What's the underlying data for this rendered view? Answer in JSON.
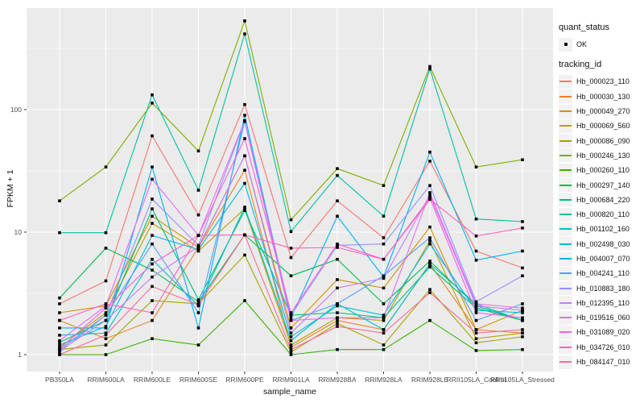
{
  "figure": {
    "x_axis_title": "sample_name",
    "y_axis_title": "FPKM + 1",
    "legend": {
      "quant_status_title": "quant_status",
      "quant_status_items": [
        "OK"
      ],
      "tracking_id_title": "tracking_id"
    }
  },
  "colors": {
    "panel_bg": "#EBEBEB",
    "grid": "#FFFFFF",
    "legend_key_bg": "#F2F2F2",
    "tick_label": "#4D4D4D",
    "tick_mark": "#333333",
    "marker": "#000000"
  },
  "chart_data": {
    "type": "line",
    "title": "",
    "xlabel": "sample_name",
    "ylabel": "FPKM + 1",
    "y_scale": "log10",
    "yticks": [
      1,
      10,
      100
    ],
    "ytick_labels": [
      "1",
      "10",
      "100"
    ],
    "y_minor_ticks": [
      3.162,
      31.62,
      316.2
    ],
    "ylim": [
      0.73,
      675
    ],
    "grid": "on",
    "legend_position": "right",
    "point_shape": "small black square (quant_status = OK)",
    "categories": [
      "PB350LA",
      "RRIM600LA",
      "RRIM600LE",
      "RRIM600SE",
      "RRIM600PE",
      "RRIM901LA",
      "RRIM928BA",
      "RRIM928LA",
      "RRIM928LE",
      "RRII105LA_Control",
      "RRII105LA_Stressed"
    ],
    "series": [
      {
        "name": "Hb_000023_110",
        "color": "#F8766D",
        "values": [
          2.6,
          4.0,
          61,
          13.8,
          110,
          6.2,
          18,
          9.0,
          38,
          7.0,
          5.1
        ]
      },
      {
        "name": "Hb_000030_130",
        "color": "#E88526",
        "values": [
          1.9,
          1.35,
          1.9,
          7.5,
          32,
          1.15,
          1.9,
          1.6,
          5.5,
          1.6,
          1.5
        ]
      },
      {
        "name": "Hb_000049_270",
        "color": "#D39200",
        "values": [
          2.2,
          2.5,
          13.5,
          7.5,
          42,
          1.65,
          4.1,
          3.5,
          11,
          1.6,
          2.3
        ]
      },
      {
        "name": "Hb_000069_560",
        "color": "#BC9D00",
        "values": [
          1.15,
          2.2,
          11.8,
          7.0,
          15.5,
          1.2,
          2.0,
          1.9,
          8.5,
          1.35,
          1.5
        ]
      },
      {
        "name": "Hb_000086_090",
        "color": "#A3A500",
        "values": [
          1.1,
          1.2,
          2.76,
          2.6,
          6.5,
          1.05,
          1.8,
          1.2,
          3.4,
          1.25,
          1.4
        ]
      },
      {
        "name": "Hb_000246_130",
        "color": "#7CAE00",
        "values": [
          18,
          34,
          113,
          46,
          530,
          12.6,
          33,
          24,
          225,
          34,
          39
        ]
      },
      {
        "name": "Hb_000260_110",
        "color": "#39B600",
        "values": [
          1.0,
          1.0,
          1.35,
          1.2,
          2.76,
          1.0,
          1.1,
          1.1,
          1.9,
          1.08,
          1.1
        ]
      },
      {
        "name": "Hb_000297_140",
        "color": "#00BB4E",
        "values": [
          2.9,
          7.4,
          4.9,
          2.7,
          9.5,
          4.4,
          6.0,
          2.6,
          5.8,
          2.5,
          1.9
        ]
      },
      {
        "name": "Hb_000684_220",
        "color": "#00BF7D",
        "values": [
          1.26,
          1.9,
          15.5,
          2.8,
          15,
          2.1,
          2.2,
          2.0,
          5.2,
          2.4,
          1.9
        ]
      },
      {
        "name": "Hb_000820_110",
        "color": "#00C1A3",
        "values": [
          9.9,
          9.9,
          132,
          22,
          415,
          10.1,
          29,
          13.5,
          215,
          12.8,
          12.2
        ]
      },
      {
        "name": "Hb_001102_160",
        "color": "#00BFC4",
        "values": [
          1.44,
          1.5,
          6.0,
          2.5,
          16,
          1.3,
          2.6,
          1.6,
          5.5,
          2.6,
          1.9
        ]
      },
      {
        "name": "Hb_002498_030",
        "color": "#00BAE0",
        "values": [
          1.2,
          1.7,
          9.4,
          7.2,
          25,
          1.4,
          2.5,
          2.1,
          8.0,
          2.3,
          2.2
        ]
      },
      {
        "name": "Hb_004007_070",
        "color": "#00B0F6",
        "values": [
          1.65,
          1.65,
          34,
          1.65,
          90,
          2.0,
          13.5,
          4.3,
          45,
          5.9,
          7.0
        ]
      },
      {
        "name": "Hb_004241_110",
        "color": "#529EFF",
        "values": [
          1.1,
          2.1,
          8.0,
          2.2,
          80,
          1.9,
          2.6,
          4.4,
          9.0,
          1.9,
          2.6
        ]
      },
      {
        "name": "Hb_010883_180",
        "color": "#9590FF",
        "values": [
          1.05,
          2.1,
          18.6,
          7.8,
          81,
          2.1,
          7.8,
          8.0,
          24,
          2.7,
          4.4
        ]
      },
      {
        "name": "Hb_012395_110",
        "color": "#C77CFF",
        "values": [
          1.08,
          1.9,
          4.3,
          7.6,
          42,
          1.5,
          3.5,
          4.2,
          20,
          2.5,
          2.3
        ]
      },
      {
        "name": "Hb_019516_060",
        "color": "#E76BF3",
        "values": [
          1.3,
          2.5,
          27,
          9.4,
          81,
          1.9,
          2.0,
          2.0,
          21,
          2.6,
          2.4
        ]
      },
      {
        "name": "Hb_031089_020",
        "color": "#FA62DB",
        "values": [
          1.12,
          2.4,
          5.5,
          9.4,
          58,
          2.2,
          8.0,
          6.0,
          19,
          2.2,
          2.0
        ]
      },
      {
        "name": "Hb_034726_010",
        "color": "#FF62BC",
        "values": [
          1.9,
          2.6,
          2.2,
          9.4,
          9.5,
          7.4,
          7.5,
          6.0,
          18.5,
          9.3,
          10.8
        ]
      },
      {
        "name": "Hb_084147_010",
        "color": "#FF6A98",
        "values": [
          1.0,
          1.45,
          3.6,
          2.55,
          9.5,
          1.1,
          1.7,
          1.5,
          3.2,
          1.5,
          1.6
        ]
      }
    ]
  }
}
